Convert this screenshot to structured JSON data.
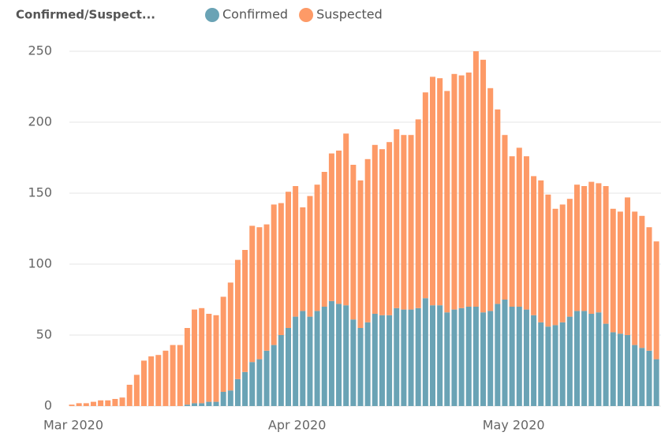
{
  "chart_data": {
    "type": "stacked_bar",
    "title": "Confirmed/Suspect...",
    "categories": [
      "Mar 2020",
      null,
      null,
      null,
      null,
      null,
      null,
      null,
      null,
      null,
      null,
      null,
      null,
      null,
      null,
      null,
      null,
      null,
      null,
      null,
      null,
      null,
      null,
      null,
      null,
      null,
      null,
      null,
      null,
      null,
      null,
      "Apr 2020",
      null,
      null,
      null,
      null,
      null,
      null,
      null,
      null,
      null,
      null,
      null,
      null,
      null,
      null,
      null,
      null,
      null,
      null,
      null,
      null,
      null,
      null,
      null,
      null,
      null,
      null,
      null,
      null,
      null,
      "May 2020",
      null,
      null,
      null,
      null,
      null,
      null,
      null,
      null,
      null,
      null,
      null,
      null,
      null,
      null,
      null,
      null,
      null,
      null,
      null,
      null
    ],
    "series": [
      {
        "name": "Confirmed",
        "color": "#6aa3b5",
        "values": [
          0,
          0,
          0,
          0,
          0,
          0,
          0,
          0,
          0,
          0,
          0,
          0,
          0,
          0,
          0,
          0,
          1,
          2,
          2,
          3,
          3,
          10,
          11,
          19,
          24,
          31,
          33,
          39,
          43,
          50,
          55,
          63,
          67,
          63,
          67,
          70,
          74,
          72,
          71,
          61,
          55,
          59,
          65,
          64,
          64,
          69,
          68,
          68,
          69,
          76,
          71,
          71,
          66,
          68,
          69,
          70,
          70,
          66,
          67,
          72,
          75,
          70,
          70,
          68,
          64,
          59,
          56,
          57,
          59,
          63,
          67,
          67,
          65,
          66,
          58,
          52,
          51,
          50,
          43,
          41,
          39,
          33
        ]
      },
      {
        "name": "Suspected",
        "color": "#fd9a67",
        "values": [
          1,
          2,
          2,
          3,
          4,
          4,
          5,
          6,
          15,
          22,
          32,
          35,
          36,
          39,
          43,
          43,
          54,
          66,
          67,
          62,
          61,
          67,
          76,
          84,
          86,
          96,
          93,
          89,
          99,
          93,
          96,
          92,
          73,
          85,
          89,
          95,
          104,
          108,
          121,
          109,
          104,
          115,
          119,
          117,
          122,
          126,
          123,
          123,
          133,
          145,
          161,
          160,
          156,
          166,
          164,
          165,
          180,
          178,
          157,
          137,
          116,
          106,
          112,
          108,
          98,
          100,
          93,
          82,
          83,
          83,
          89,
          88,
          93,
          91,
          97,
          87,
          86,
          97,
          94,
          93,
          87,
          83
        ]
      }
    ],
    "ylim": [
      0,
      250
    ],
    "yticks": [
      0,
      50,
      100,
      150,
      200,
      250
    ],
    "grid": true
  }
}
